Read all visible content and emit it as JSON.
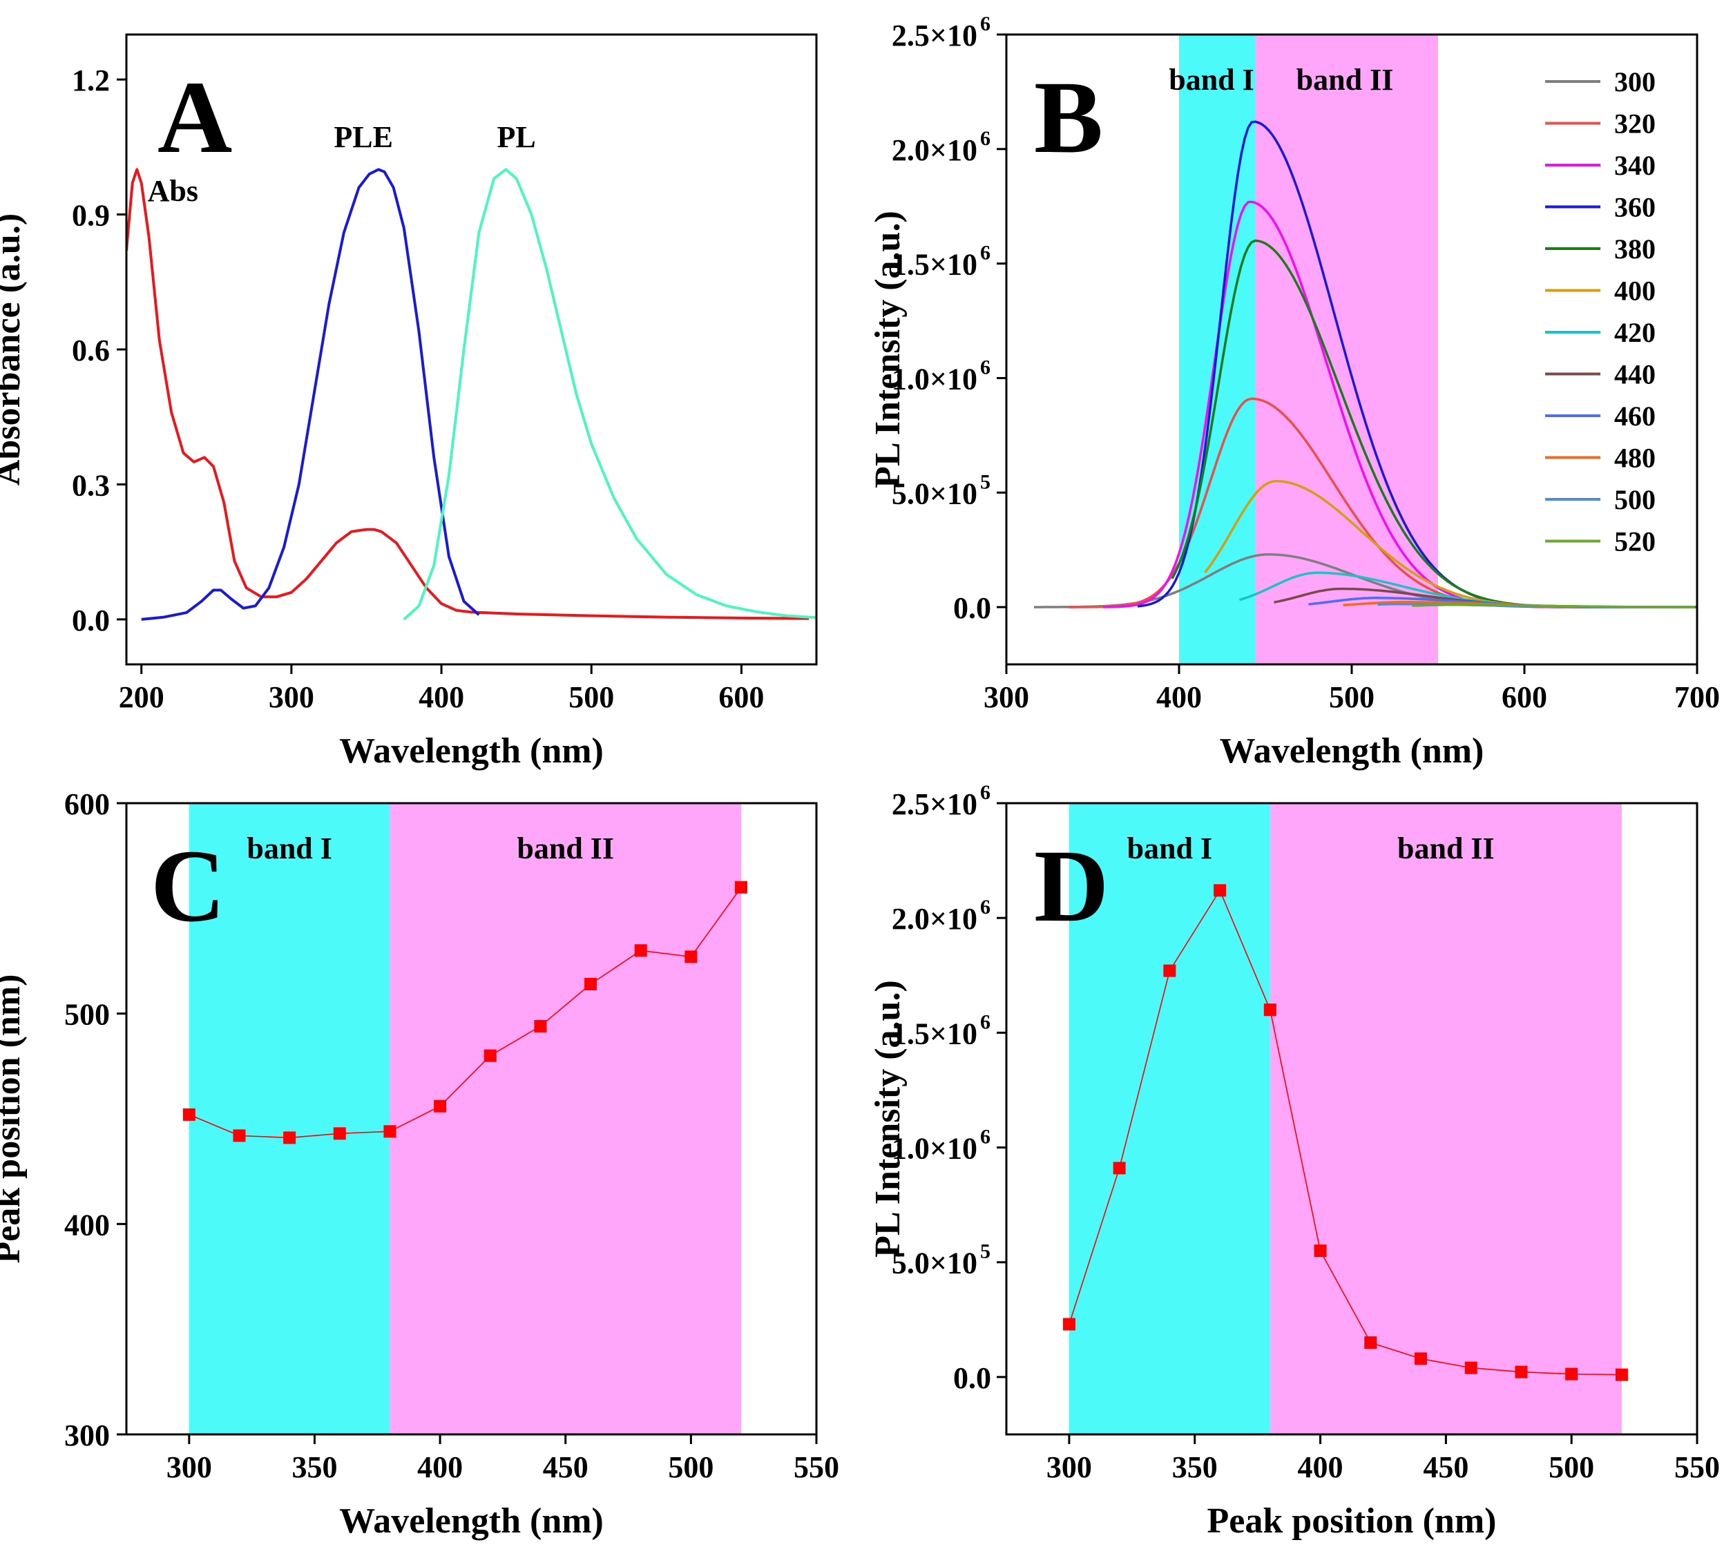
{
  "figure": "Four-panel photoluminescence figure",
  "colors": {
    "band_I": "#4dfafa",
    "band_II": "#ffa6fa",
    "marker": "#ff0000",
    "abs": "#e8181c",
    "ple": "#1a1ad6",
    "pl": "#4df5c0"
  },
  "chart_data": [
    {
      "panel": "A",
      "type": "line",
      "letter": "A",
      "xlabel": "Wavelength (nm)",
      "ylabel": "Absorbance (a.u.)",
      "xlim": [
        190,
        650
      ],
      "ylim": [
        -0.1,
        1.3
      ],
      "xticks": [
        200,
        300,
        400,
        500,
        600
      ],
      "yticks": [
        0.0,
        0.3,
        0.6,
        0.9,
        1.2
      ],
      "ytick_labels": [
        "0.0",
        "0.3",
        "0.6",
        "0.9",
        "1.2"
      ],
      "annotations": [
        {
          "text": "Abs",
          "x": 221,
          "y": 0.93
        },
        {
          "text": "PLE",
          "x": 348,
          "y": 1.05
        },
        {
          "text": "PL",
          "x": 450,
          "y": 1.05
        }
      ],
      "series": [
        {
          "name": "Abs",
          "color": "#e8181c",
          "x": [
            190,
            194,
            197,
            200,
            205,
            212,
            220,
            228,
            235,
            242,
            248,
            255,
            262,
            270,
            280,
            290,
            300,
            310,
            320,
            330,
            340,
            350,
            355,
            360,
            370,
            380,
            390,
            400,
            410,
            420,
            450,
            500,
            550,
            600,
            645
          ],
          "y": [
            0.82,
            0.97,
            1.0,
            0.97,
            0.85,
            0.62,
            0.46,
            0.37,
            0.35,
            0.36,
            0.34,
            0.26,
            0.13,
            0.07,
            0.05,
            0.05,
            0.06,
            0.09,
            0.13,
            0.17,
            0.195,
            0.2,
            0.2,
            0.195,
            0.17,
            0.12,
            0.07,
            0.035,
            0.02,
            0.016,
            0.012,
            0.008,
            0.005,
            0.003,
            0.002
          ]
        },
        {
          "name": "PLE",
          "color": "#1a1ad6",
          "x": [
            200,
            215,
            230,
            240,
            248,
            253,
            260,
            268,
            276,
            285,
            295,
            305,
            315,
            325,
            335,
            345,
            352,
            358,
            362,
            368,
            375,
            385,
            395,
            405,
            415,
            425
          ],
          "y": [
            0.0,
            0.005,
            0.015,
            0.04,
            0.065,
            0.065,
            0.045,
            0.025,
            0.03,
            0.07,
            0.16,
            0.3,
            0.5,
            0.7,
            0.86,
            0.96,
            0.99,
            1.0,
            0.995,
            0.96,
            0.87,
            0.64,
            0.36,
            0.14,
            0.04,
            0.01
          ]
        },
        {
          "name": "PL",
          "color": "#4df5c0",
          "x": [
            375,
            385,
            395,
            405,
            415,
            425,
            435,
            443,
            450,
            460,
            470,
            480,
            490,
            500,
            515,
            530,
            550,
            570,
            590,
            610,
            630,
            650
          ],
          "y": [
            0.0,
            0.03,
            0.12,
            0.32,
            0.6,
            0.86,
            0.98,
            1.0,
            0.98,
            0.9,
            0.78,
            0.64,
            0.5,
            0.39,
            0.27,
            0.18,
            0.1,
            0.055,
            0.03,
            0.017,
            0.008,
            0.004
          ]
        }
      ]
    },
    {
      "panel": "B",
      "type": "line",
      "letter": "B",
      "xlabel": "Wavelength (nm)",
      "ylabel": "PL Intensity (a.u.)",
      "xlim": [
        300,
        700
      ],
      "ylim": [
        -250000,
        2500000
      ],
      "xticks": [
        300,
        400,
        500,
        600,
        700
      ],
      "yticks": [
        0,
        500000,
        1000000,
        1500000,
        2000000,
        2500000
      ],
      "ytick_labels": [
        {
          "mant": "0.0",
          "exp": ""
        },
        {
          "mant": "5.0×10",
          "exp": "5"
        },
        {
          "mant": "1.0×10",
          "exp": "6"
        },
        {
          "mant": "1.5×10",
          "exp": "6"
        },
        {
          "mant": "2.0×10",
          "exp": "6"
        },
        {
          "mant": "2.5×10",
          "exp": "6"
        }
      ],
      "bands": [
        {
          "label": "band I",
          "from": 400,
          "to": 444,
          "color": "#4dfafa"
        },
        {
          "label": "band II",
          "from": 444,
          "to": 550,
          "color": "#ffa6fa"
        }
      ],
      "legend_position": "top-right",
      "series": [
        {
          "name": "300",
          "color": "#7f7f7f",
          "start": 316,
          "peak": 452,
          "amp": 230000,
          "wl": 40,
          "wr": 58
        },
        {
          "name": "320",
          "color": "#e8504a",
          "start": 336,
          "peak": 442,
          "amp": 910000,
          "wl": 28,
          "wr": 55
        },
        {
          "name": "340",
          "color": "#f20ef2",
          "start": 356,
          "peak": 441,
          "amp": 1770000,
          "wl": 24,
          "wr": 52
        },
        {
          "name": "360",
          "color": "#1a1ad6",
          "start": 376,
          "peak": 443,
          "amp": 2120000,
          "wl": 22,
          "wr": 55
        },
        {
          "name": "380",
          "color": "#1e7a1e",
          "start": 396,
          "peak": 444,
          "amp": 1600000,
          "wl": 25,
          "wr": 57
        },
        {
          "name": "400",
          "color": "#d4a012",
          "start": 415,
          "peak": 456,
          "amp": 550000,
          "wl": 30,
          "wr": 58
        },
        {
          "name": "420",
          "color": "#1ec2c2",
          "start": 435,
          "peak": 480,
          "amp": 150000,
          "wl": 30,
          "wr": 58
        },
        {
          "name": "440",
          "color": "#7a4a4a",
          "start": 455,
          "peak": 494,
          "amp": 80000,
          "wl": 28,
          "wr": 58
        },
        {
          "name": "460",
          "color": "#4a6ef5",
          "start": 475,
          "peak": 514,
          "amp": 40000,
          "wl": 30,
          "wr": 58
        },
        {
          "name": "480",
          "color": "#f26a1e",
          "start": 495,
          "peak": 530,
          "amp": 22000,
          "wl": 30,
          "wr": 58
        },
        {
          "name": "500",
          "color": "#4a90d9",
          "start": 515,
          "peak": 527,
          "amp": 13000,
          "wl": 30,
          "wr": 58
        },
        {
          "name": "520",
          "color": "#6aaa2a",
          "start": 535,
          "peak": 560,
          "amp": 10000,
          "wl": 30,
          "wr": 58
        }
      ]
    },
    {
      "panel": "C",
      "type": "scatter",
      "letter": "C",
      "xlabel": "Wavelength (nm)",
      "ylabel": "Peak position (nm)",
      "xlim": [
        275,
        550
      ],
      "ylim": [
        300,
        600
      ],
      "xticks": [
        300,
        350,
        400,
        450,
        500,
        550
      ],
      "yticks": [
        300,
        400,
        500,
        600
      ],
      "bands": [
        {
          "label": "band I",
          "from": 300,
          "to": 380,
          "color": "#4dfafa"
        },
        {
          "label": "band II",
          "from": 380,
          "to": 520,
          "color": "#ffa6fa"
        }
      ],
      "x": [
        300,
        320,
        340,
        360,
        380,
        400,
        420,
        440,
        460,
        480,
        500,
        520
      ],
      "y": [
        452,
        442,
        441,
        443,
        444,
        456,
        480,
        494,
        514,
        530,
        527,
        560
      ]
    },
    {
      "panel": "D",
      "type": "scatter",
      "letter": "D",
      "xlabel": "Peak position (nm)",
      "ylabel": "PL Intensity (a.u.)",
      "xlim": [
        275,
        550
      ],
      "ylim": [
        -250000,
        2500000
      ],
      "xticks": [
        300,
        350,
        400,
        450,
        500,
        550
      ],
      "yticks": [
        0,
        500000,
        1000000,
        1500000,
        2000000,
        2500000
      ],
      "ytick_labels": [
        {
          "mant": "0.0",
          "exp": ""
        },
        {
          "mant": "5.0×10",
          "exp": "5"
        },
        {
          "mant": "1.0×10",
          "exp": "6"
        },
        {
          "mant": "1.5×10",
          "exp": "6"
        },
        {
          "mant": "2.0×10",
          "exp": "6"
        },
        {
          "mant": "2.5×10",
          "exp": "6"
        }
      ],
      "bands": [
        {
          "label": "band I",
          "from": 300,
          "to": 380,
          "color": "#4dfafa"
        },
        {
          "label": "band II",
          "from": 380,
          "to": 520,
          "color": "#ffa6fa"
        }
      ],
      "x": [
        300,
        320,
        340,
        360,
        380,
        400,
        420,
        440,
        460,
        480,
        500,
        520
      ],
      "y": [
        230000,
        910000,
        1770000,
        2120000,
        1600000,
        550000,
        150000,
        80000,
        40000,
        22000,
        13000,
        10000
      ]
    }
  ]
}
